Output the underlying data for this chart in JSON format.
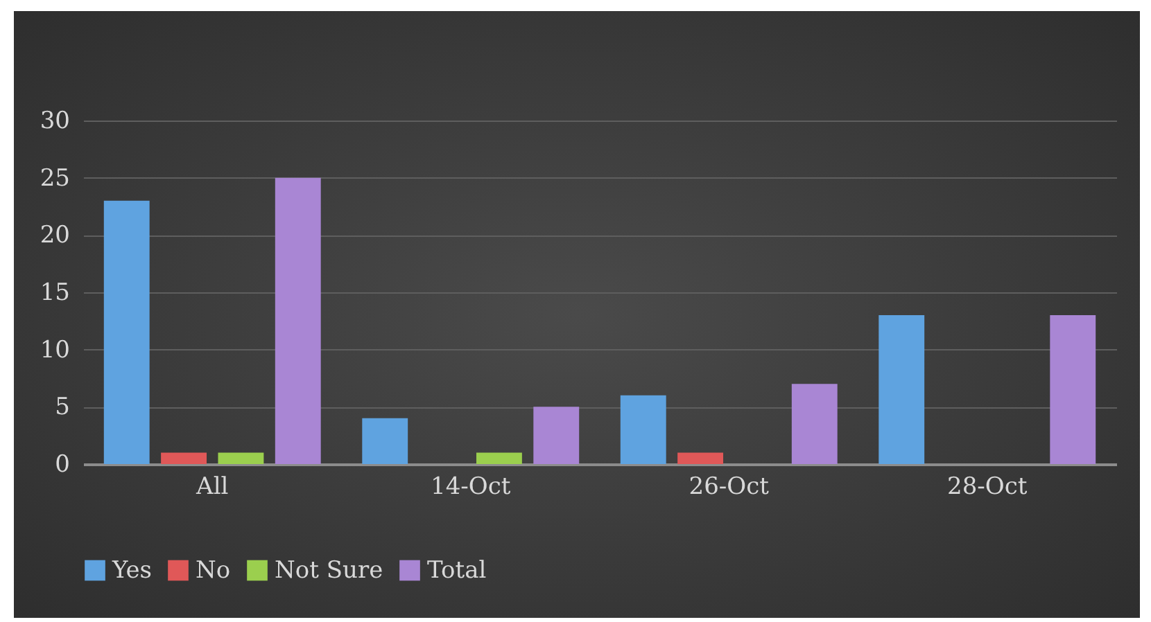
{
  "chart_data": {
    "type": "bar",
    "categories": [
      "All",
      "14-Oct",
      "26-Oct",
      "28-Oct"
    ],
    "series": [
      {
        "name": "Yes",
        "color": "#5fa3e0",
        "values": [
          23,
          4,
          6,
          13
        ]
      },
      {
        "name": "No",
        "color": "#e05858",
        "values": [
          1,
          0,
          1,
          0
        ]
      },
      {
        "name": "Not Sure",
        "color": "#9bcf4e",
        "values": [
          1,
          1,
          0,
          0
        ]
      },
      {
        "name": "Total",
        "color": "#a986d4",
        "values": [
          25,
          5,
          7,
          13
        ]
      }
    ],
    "ylim": [
      0,
      30
    ],
    "yticks": [
      0,
      5,
      10,
      15,
      20,
      25,
      30
    ],
    "grid": "y",
    "legend": "bottom"
  }
}
